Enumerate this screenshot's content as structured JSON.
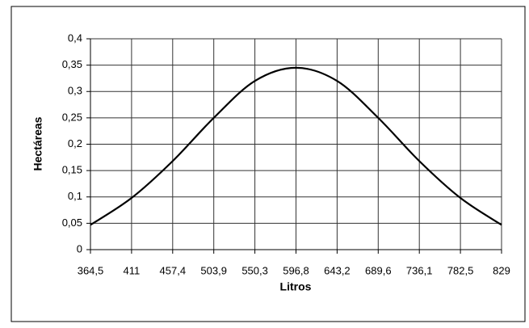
{
  "chart_data": {
    "type": "line",
    "xlabel": "Litros",
    "ylabel": "Hectáreas",
    "categories": [
      "364,5",
      "411",
      "457,4",
      "503,9",
      "550,3",
      "596,8",
      "643,2",
      "689,6",
      "736,1",
      "782,5",
      "829"
    ],
    "series": [
      {
        "name": null,
        "color": "#000000",
        "values": [
          0.047,
          0.098,
          0.168,
          0.25,
          0.32,
          0.345,
          0.32,
          0.25,
          0.168,
          0.098,
          0.047
        ]
      }
    ],
    "ylim": [
      0,
      0.4
    ],
    "yticks": [
      0,
      {
        "value": 0.05,
        "label": "0,05"
      },
      {
        "value": 0.1,
        "label": "0,1"
      },
      {
        "value": 0.15,
        "label": "0,15"
      },
      {
        "value": 0.2,
        "label": "0,2"
      },
      {
        "value": 0.25,
        "label": "0,25"
      },
      {
        "value": 0.3,
        "label": "0,3"
      },
      {
        "value": 0.35,
        "label": "0,35"
      },
      {
        "value": 0.4,
        "label": "0,4"
      }
    ],
    "grid": true
  }
}
